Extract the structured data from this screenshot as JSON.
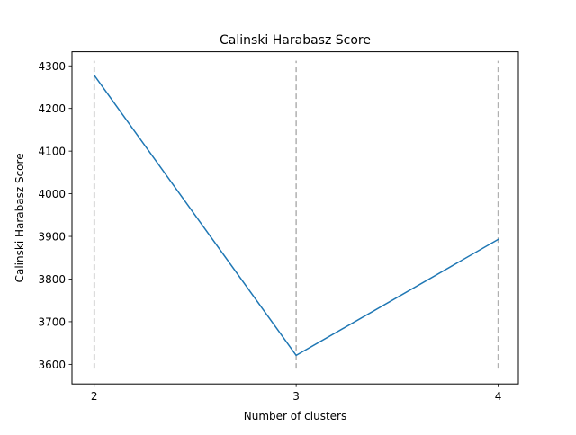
{
  "chart_data": {
    "type": "line",
    "title": "Calinski Harabasz Score",
    "xlabel": "Number of clusters",
    "ylabel": "Calinski Harabasz Score",
    "x": [
      2,
      3,
      4
    ],
    "series": [
      {
        "values": [
          4278,
          3621,
          3893
        ],
        "color": "#1f77b4"
      }
    ],
    "xticks": [
      2,
      3,
      4
    ],
    "yticks": [
      3600,
      3700,
      3800,
      3900,
      4000,
      4100,
      4200,
      4300
    ],
    "xlim": [
      1.89,
      4.1
    ],
    "ylim": [
      3554,
      4333
    ],
    "vlines": {
      "x": [
        2,
        3,
        4
      ],
      "ymin": 3590,
      "ymax": 4312,
      "style": "dashed",
      "color": "#b0b0b0"
    },
    "grid": false,
    "legend": "none"
  }
}
